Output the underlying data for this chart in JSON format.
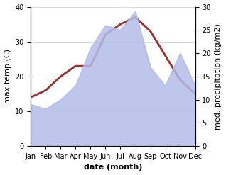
{
  "months": [
    "Jan",
    "Feb",
    "Mar",
    "Apr",
    "May",
    "Jun",
    "Jul",
    "Aug",
    "Sep",
    "Oct",
    "Nov",
    "Dec"
  ],
  "x": [
    0,
    1,
    2,
    3,
    4,
    5,
    6,
    7,
    8,
    9,
    10,
    11
  ],
  "max_temp": [
    14,
    16,
    20,
    23,
    23,
    32,
    35,
    37,
    33,
    26,
    19,
    15
  ],
  "precipitation": [
    9,
    8,
    10,
    13,
    21,
    26,
    25,
    29,
    17,
    13,
    20,
    13
  ],
  "temp_color": "#993333",
  "precip_fill_color": "#b3bce8",
  "temp_ylim": [
    0,
    40
  ],
  "precip_ylim": [
    0,
    30
  ],
  "temp_yticks": [
    0,
    10,
    20,
    30,
    40
  ],
  "precip_yticks": [
    0,
    5,
    10,
    15,
    20,
    25,
    30
  ],
  "xlabel": "date (month)",
  "ylabel_left": "max temp (C)",
  "ylabel_right": "med. precipitation (kg/m2)",
  "bg_color": "#ffffff",
  "label_fontsize": 8,
  "tick_fontsize": 7,
  "line_width": 1.8
}
